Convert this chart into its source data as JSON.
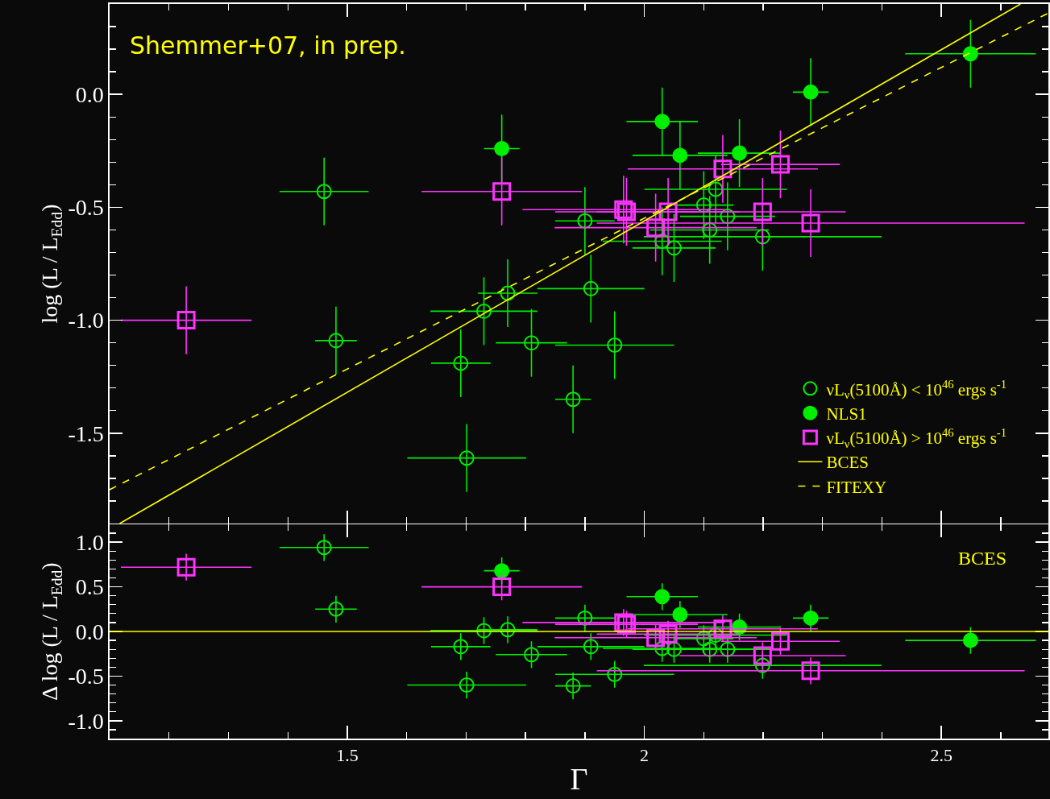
{
  "chart_data": [
    {
      "type": "scatter",
      "ylabel": "log (L / L$_{Edd}$)",
      "annotations": [
        "Shemmer+07, in prep."
      ],
      "legend": "bottom right",
      "grid": false,
      "tick_labels": "y",
      "xlim": [
        1.1,
        2.68
      ],
      "ylim": [
        -1.9,
        0.4
      ],
      "xticks": [
        {
          "value": 1.2,
          "label": null
        },
        {
          "value": 1.3,
          "label": null
        },
        {
          "value": 1.4,
          "label": null
        },
        1.5,
        {
          "value": 1.6,
          "label": null
        },
        {
          "value": 1.7,
          "label": null
        },
        {
          "value": 1.8,
          "label": null
        },
        {
          "value": 1.9,
          "label": null
        },
        2,
        {
          "value": 2.1,
          "label": null
        },
        {
          "value": 2.2,
          "label": null
        },
        {
          "value": 2.3,
          "label": null
        },
        {
          "value": 2.4,
          "label": null
        },
        2.5,
        {
          "value": 2.6,
          "label": null
        }
      ],
      "yticks": [
        {
          "value": 0.3,
          "label": null
        },
        {
          "value": 0.2,
          "label": null
        },
        {
          "value": 0.1,
          "label": null
        },
        {
          "value": 0,
          "label": "0.0"
        },
        {
          "value": -0.1,
          "label": null
        },
        {
          "value": -0.2,
          "label": null
        },
        {
          "value": -0.3,
          "label": null
        },
        {
          "value": -0.4,
          "label": null
        },
        -0.5,
        {
          "value": -0.6,
          "label": null
        },
        {
          "value": -0.7,
          "label": null
        },
        {
          "value": -0.8,
          "label": null
        },
        {
          "value": -0.9,
          "label": null
        },
        {
          "value": -1,
          "label": "-1.0"
        },
        {
          "value": -1.1,
          "label": null
        },
        {
          "value": -1.2,
          "label": null
        },
        {
          "value": -1.3,
          "label": null
        },
        {
          "value": -1.4,
          "label": null
        },
        -1.5,
        {
          "value": -1.6,
          "label": null
        },
        {
          "value": -1.7,
          "label": null
        },
        {
          "value": -1.8,
          "label": null
        }
      ],
      "series": [
        {
          "name": "νL$_{ν}$(5100Å) < 10$^{46}$ ergs s$^{-1}$",
          "type": "scatter",
          "marker": "circle-open",
          "color": "#00ee00",
          "x": [
            1.461,
            1.481,
            1.691,
            1.701,
            1.73,
            1.77,
            1.81,
            1.88,
            1.9,
            1.91,
            1.95,
            2.03,
            2.05,
            2.1,
            2.11,
            2.12,
            2.14,
            2.199
          ],
          "values": [
            -0.43,
            -1.09,
            -1.19,
            -1.61,
            -0.96,
            -0.88,
            -1.1,
            -1.35,
            -0.56,
            -0.86,
            -1.11,
            -0.65,
            -0.68,
            -0.49,
            -0.6,
            -0.42,
            -0.54,
            -0.63
          ],
          "errors": [
            0.15,
            0.15,
            0.15,
            0.15,
            0.15,
            0.15,
            0.15,
            0.15,
            0.15,
            0.15,
            0.15,
            0.15,
            0.15,
            0.15,
            0.15,
            0.15,
            0.15,
            0.15
          ],
          "xerrors": [
            0.075,
            0.035,
            0.05,
            0.1,
            0.09,
            0.05,
            0.06,
            0.03,
            0.05,
            0.09,
            0.1,
            0.1,
            0.07,
            0.05,
            0.1,
            0.12,
            0.08,
            0.2
          ]
        },
        {
          "name": "NLS1",
          "type": "scatter",
          "marker": "circle",
          "color": "#00ee00",
          "x": [
            1.76,
            2.03,
            2.06,
            2.16,
            2.28,
            2.549
          ],
          "values": [
            -0.24,
            -0.12,
            -0.27,
            -0.26,
            0.01,
            0.18
          ],
          "errors": [
            0.15,
            0.15,
            0.15,
            0.15,
            0.15,
            0.15
          ],
          "xerrors": [
            0.03,
            0.06,
            0.08,
            0.07,
            0.03,
            0.11
          ]
        },
        {
          "name": "νL$_{ν}$(5100Å) > 10$^{46}$ ergs s$^{-1}$",
          "type": "scatter",
          "marker": "square-open",
          "color": "#ff33ff",
          "x": [
            1.229,
            1.76,
            1.965,
            1.97,
            2.019,
            2.04,
            2.132,
            2.199,
            2.229,
            2.28
          ],
          "values": [
            -1.0,
            -0.43,
            -0.51,
            -0.52,
            -0.59,
            -0.52,
            -0.33,
            -0.52,
            -0.31,
            -0.57
          ],
          "errors": [
            0.15,
            0.15,
            0.15,
            0.15,
            0.15,
            0.15,
            0.15,
            0.15,
            0.15,
            0.15
          ],
          "xerrors": [
            0.11,
            0.135,
            0.17,
            0.12,
            0.17,
            0.12,
            0.16,
            0.14,
            0.1,
            0.36
          ]
        },
        {
          "name": "BCES",
          "type": "line",
          "line_style": "solid",
          "marker": "none",
          "color": "#ffff00",
          "x": [
            1.117,
            2.633
          ],
          "values": [
            -1.9,
            0.4
          ]
        },
        {
          "name": "FITEXY",
          "type": "line",
          "line_style": "dashed",
          "marker": "none",
          "color": "#ffff00",
          "x": [
            1.1,
            2.68
          ],
          "values": [
            -1.75,
            0.36
          ]
        }
      ]
    },
    {
      "type": "scatter",
      "xlabel": "Γ",
      "ylabel": "Δ log (L / L$_{Edd}$)",
      "annotations": [
        "BCES"
      ],
      "grid": false,
      "xlim": [
        1.1,
        2.68
      ],
      "ylim": [
        -1.2,
        1.2
      ],
      "xticks": [
        {
          "value": 1.2,
          "label": null
        },
        {
          "value": 1.3,
          "label": null
        },
        {
          "value": 1.4,
          "label": null
        },
        1.5,
        {
          "value": 1.6,
          "label": null
        },
        {
          "value": 1.7,
          "label": null
        },
        {
          "value": 1.8,
          "label": null
        },
        {
          "value": 1.9,
          "label": null
        },
        2,
        {
          "value": 2.1,
          "label": null
        },
        {
          "value": 2.2,
          "label": null
        },
        {
          "value": 2.3,
          "label": null
        },
        {
          "value": 2.4,
          "label": null
        },
        2.5,
        {
          "value": 2.6,
          "label": null
        }
      ],
      "yticks": [
        {
          "value": 1.1,
          "label": null
        },
        {
          "value": 1,
          "label": "1.0"
        },
        {
          "value": 0.9,
          "label": null
        },
        {
          "value": 0.8,
          "label": null
        },
        {
          "value": 0.7,
          "label": null
        },
        {
          "value": 0.6,
          "label": null
        },
        0.5,
        {
          "value": 0.4,
          "label": null
        },
        {
          "value": 0.3,
          "label": null
        },
        {
          "value": 0.2,
          "label": null
        },
        {
          "value": 0.1,
          "label": null
        },
        {
          "value": 0,
          "label": "0.0"
        },
        {
          "value": -0.1,
          "label": null
        },
        {
          "value": -0.2,
          "label": null
        },
        {
          "value": -0.3,
          "label": null
        },
        {
          "value": -0.4,
          "label": null
        },
        -0.5,
        {
          "value": -0.6,
          "label": null
        },
        {
          "value": -0.7,
          "label": null
        },
        {
          "value": -0.8,
          "label": null
        },
        {
          "value": -0.9,
          "label": null
        },
        {
          "value": -1,
          "label": "-1.0"
        },
        {
          "value": -1.1,
          "label": null
        }
      ],
      "ref_lines": [
        {
          "axis": "y",
          "value": 0,
          "color": "#ffff00"
        }
      ],
      "series": [
        {
          "type": "scatter",
          "marker": "circle-open",
          "color": "#00ee00",
          "x": [
            1.461,
            1.481,
            1.691,
            1.701,
            1.73,
            1.77,
            1.81,
            1.88,
            1.9,
            1.91,
            1.95,
            2.03,
            2.05,
            2.1,
            2.11,
            2.12,
            2.14,
            2.199
          ],
          "values": [
            0.94,
            0.25,
            -0.17,
            -0.6,
            0.01,
            0.02,
            -0.26,
            -0.61,
            0.15,
            -0.17,
            -0.48,
            -0.19,
            -0.2,
            -0.08,
            -0.2,
            -0.04,
            -0.2,
            -0.38
          ],
          "errors": [
            0.15,
            0.15,
            0.15,
            0.15,
            0.15,
            0.15,
            0.15,
            0.15,
            0.15,
            0.15,
            0.15,
            0.15,
            0.15,
            0.15,
            0.15,
            0.15,
            0.15,
            0.15
          ],
          "xerrors": [
            0.075,
            0.035,
            0.05,
            0.1,
            0.09,
            0.05,
            0.06,
            0.03,
            0.05,
            0.09,
            0.1,
            0.1,
            0.07,
            0.05,
            0.1,
            0.12,
            0.08,
            0.2
          ]
        },
        {
          "type": "scatter",
          "marker": "circle",
          "color": "#00ee00",
          "x": [
            1.76,
            2.03,
            2.06,
            2.16,
            2.28,
            2.549
          ],
          "values": [
            0.68,
            0.39,
            0.19,
            0.05,
            0.15,
            -0.1
          ],
          "errors": [
            0.15,
            0.15,
            0.15,
            0.15,
            0.15,
            0.15
          ],
          "xerrors": [
            0.03,
            0.06,
            0.08,
            0.07,
            0.03,
            0.11
          ]
        },
        {
          "type": "scatter",
          "marker": "square-open",
          "color": "#ff33ff",
          "x": [
            1.229,
            1.76,
            1.965,
            1.97,
            2.019,
            2.04,
            2.132,
            2.199,
            2.229,
            2.28
          ],
          "values": [
            0.72,
            0.5,
            0.1,
            0.08,
            -0.07,
            -0.03,
            0.03,
            -0.27,
            -0.11,
            -0.44
          ],
          "errors": [
            0.15,
            0.15,
            0.15,
            0.15,
            0.15,
            0.15,
            0.15,
            0.15,
            0.15,
            0.15
          ],
          "xerrors": [
            0.11,
            0.135,
            0.17,
            0.12,
            0.17,
            0.12,
            0.16,
            0.14,
            0.1,
            0.36
          ]
        }
      ]
    }
  ]
}
